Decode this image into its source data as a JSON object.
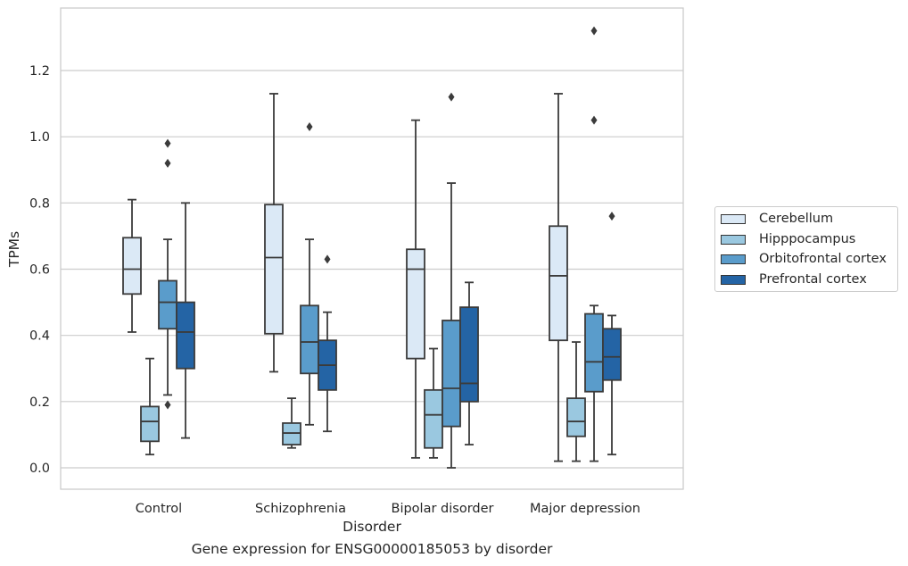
{
  "caption": "Gene expression for ENSG00000185053 by disorder",
  "chart_data": {
    "type": "boxplot",
    "xlabel": "Disorder",
    "ylabel": "TPMs",
    "ylim": [
      -0.065,
      1.39
    ],
    "yticks": [
      0.0,
      0.2,
      0.4,
      0.6,
      0.8,
      1.0,
      1.2
    ],
    "ytick_labels": [
      "0.0",
      "0.2",
      "0.4",
      "0.6",
      "0.8",
      "1.0",
      "1.2"
    ],
    "grid": "horizontal",
    "legend_position": "outside-right",
    "categories": [
      "Control",
      "Schizophrenia",
      "Bipolar disorder",
      "Major depression"
    ],
    "series": [
      {
        "name": "Cerebellum",
        "color": "#dbe9f6",
        "boxes": [
          {
            "whisker_low": 0.41,
            "q1": 0.525,
            "median": 0.6,
            "q3": 0.695,
            "whisker_high": 0.81,
            "outliers": []
          },
          {
            "whisker_low": 0.29,
            "q1": 0.405,
            "median": 0.635,
            "q3": 0.795,
            "whisker_high": 1.13,
            "outliers": []
          },
          {
            "whisker_low": 0.03,
            "q1": 0.33,
            "median": 0.6,
            "q3": 0.66,
            "whisker_high": 1.05,
            "outliers": []
          },
          {
            "whisker_low": 0.02,
            "q1": 0.385,
            "median": 0.58,
            "q3": 0.73,
            "whisker_high": 1.13,
            "outliers": []
          }
        ]
      },
      {
        "name": "Hipppocampus",
        "color": "#9ac8e0",
        "boxes": [
          {
            "whisker_low": 0.04,
            "q1": 0.08,
            "median": 0.14,
            "q3": 0.185,
            "whisker_high": 0.33,
            "outliers": []
          },
          {
            "whisker_low": 0.06,
            "q1": 0.07,
            "median": 0.105,
            "q3": 0.135,
            "whisker_high": 0.21,
            "outliers": []
          },
          {
            "whisker_low": 0.03,
            "q1": 0.06,
            "median": 0.16,
            "q3": 0.235,
            "whisker_high": 0.36,
            "outliers": []
          },
          {
            "whisker_low": 0.02,
            "q1": 0.095,
            "median": 0.14,
            "q3": 0.21,
            "whisker_high": 0.38,
            "outliers": []
          }
        ]
      },
      {
        "name": "Orbitofrontal cortex",
        "color": "#5a9ccb",
        "boxes": [
          {
            "whisker_low": 0.22,
            "q1": 0.42,
            "median": 0.5,
            "q3": 0.565,
            "whisker_high": 0.69,
            "outliers": [
              0.19,
              0.92,
              0.98
            ]
          },
          {
            "whisker_low": 0.13,
            "q1": 0.285,
            "median": 0.38,
            "q3": 0.49,
            "whisker_high": 0.69,
            "outliers": [
              1.03
            ]
          },
          {
            "whisker_low": 0.0,
            "q1": 0.125,
            "median": 0.24,
            "q3": 0.445,
            "whisker_high": 0.86,
            "outliers": [
              1.12
            ]
          },
          {
            "whisker_low": 0.02,
            "q1": 0.23,
            "median": 0.32,
            "q3": 0.465,
            "whisker_high": 0.49,
            "outliers": [
              1.05,
              1.32
            ]
          }
        ]
      },
      {
        "name": "Prefrontal cortex",
        "color": "#2464a5",
        "boxes": [
          {
            "whisker_low": 0.09,
            "q1": 0.3,
            "median": 0.41,
            "q3": 0.5,
            "whisker_high": 0.8,
            "outliers": []
          },
          {
            "whisker_low": 0.11,
            "q1": 0.235,
            "median": 0.31,
            "q3": 0.385,
            "whisker_high": 0.47,
            "outliers": [
              0.63
            ]
          },
          {
            "whisker_low": 0.07,
            "q1": 0.2,
            "median": 0.255,
            "q3": 0.485,
            "whisker_high": 0.56,
            "outliers": []
          },
          {
            "whisker_low": 0.04,
            "q1": 0.265,
            "median": 0.335,
            "q3": 0.42,
            "whisker_high": 0.46,
            "outliers": [
              0.76
            ]
          }
        ]
      }
    ]
  }
}
